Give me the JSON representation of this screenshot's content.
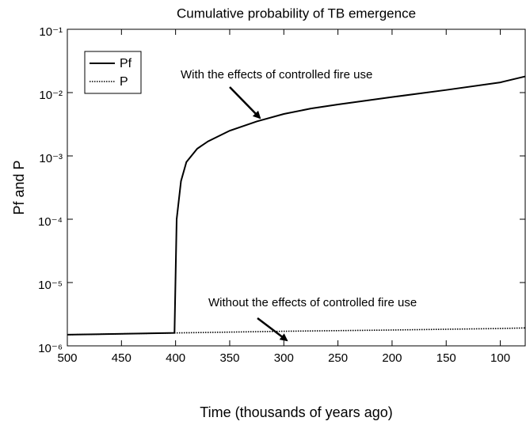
{
  "chart_data": {
    "type": "line",
    "title": "Cumulative probability of TB emergence",
    "xlabel": "Time (thousands of years ago)",
    "ylabel": "Pf and P",
    "xlim": [
      500,
      77
    ],
    "xticks": [
      500,
      450,
      400,
      350,
      300,
      250,
      200,
      150,
      100
    ],
    "ylim": [
      1e-06,
      0.1
    ],
    "yscale": "log",
    "yticks": [
      {
        "value": 1e-06,
        "label": "10⁻⁶"
      },
      {
        "value": 1e-05,
        "label": "10⁻⁵"
      },
      {
        "value": 0.0001,
        "label": "10⁻⁴"
      },
      {
        "value": 0.001,
        "label": "10⁻³"
      },
      {
        "value": 0.01,
        "label": "10⁻²"
      },
      {
        "value": 0.1,
        "label": "10⁻¹"
      }
    ],
    "legend": "upper left",
    "series": [
      {
        "name": "Pf",
        "color": "#000000",
        "style": "solid",
        "x": [
          500,
          401,
          399,
          395,
          390,
          380,
          370,
          350,
          325,
          300,
          275,
          250,
          200,
          150,
          100,
          77
        ],
        "values": [
          1.5e-06,
          1.6e-06,
          0.0001,
          0.0004,
          0.0008,
          0.0013,
          0.0017,
          0.0025,
          0.0035,
          0.0046,
          0.0056,
          0.0065,
          0.0085,
          0.011,
          0.0145,
          0.018
        ]
      },
      {
        "name": "P",
        "color": "#000000",
        "style": "dotted",
        "x": [
          500,
          400,
          300,
          200,
          100,
          77
        ],
        "values": [
          1.5e-06,
          1.6e-06,
          1.7e-06,
          1.78e-06,
          1.88e-06,
          1.92e-06
        ]
      }
    ],
    "annotations": [
      "With the effects of controlled fire use",
      "Without the effects of controlled fire use"
    ]
  }
}
